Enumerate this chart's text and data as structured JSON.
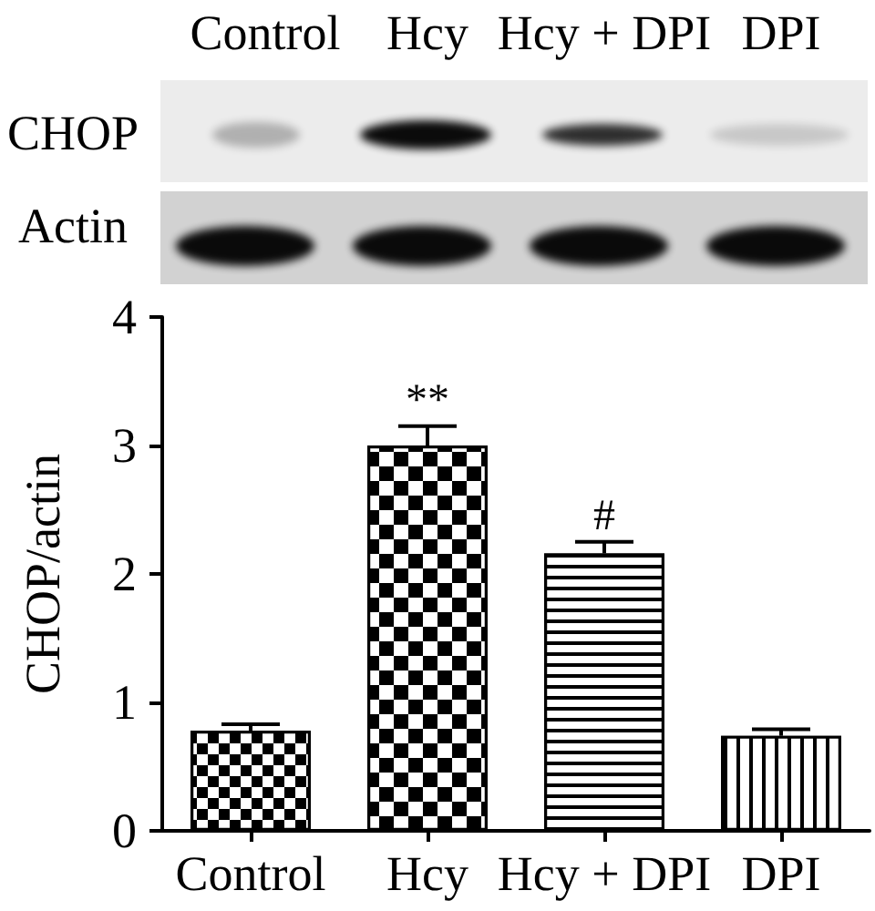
{
  "chart_data": {
    "type": "bar",
    "categories": [
      "Control",
      "Hcy",
      "Hcy + DPI",
      "DPI"
    ],
    "values": [
      0.78,
      3.0,
      2.16,
      0.74
    ],
    "color": "#000000",
    "errors": [
      [
        0.78,
        0.83
      ],
      [
        3.0,
        3.15
      ],
      [
        2.16,
        2.25
      ],
      [
        0.74,
        0.79
      ]
    ],
    "ylabel": "CHOP/actin",
    "ylim": [
      0,
      4
    ],
    "yticks": [
      0,
      1,
      2,
      3,
      4
    ],
    "annotations": [
      {
        "text": "**",
        "x": "Hcy",
        "y": 3.15
      },
      {
        "text": "#",
        "x": "Hcy + DPI",
        "y": 2.25
      },
      "CHOP",
      "Actin"
    ]
  }
}
